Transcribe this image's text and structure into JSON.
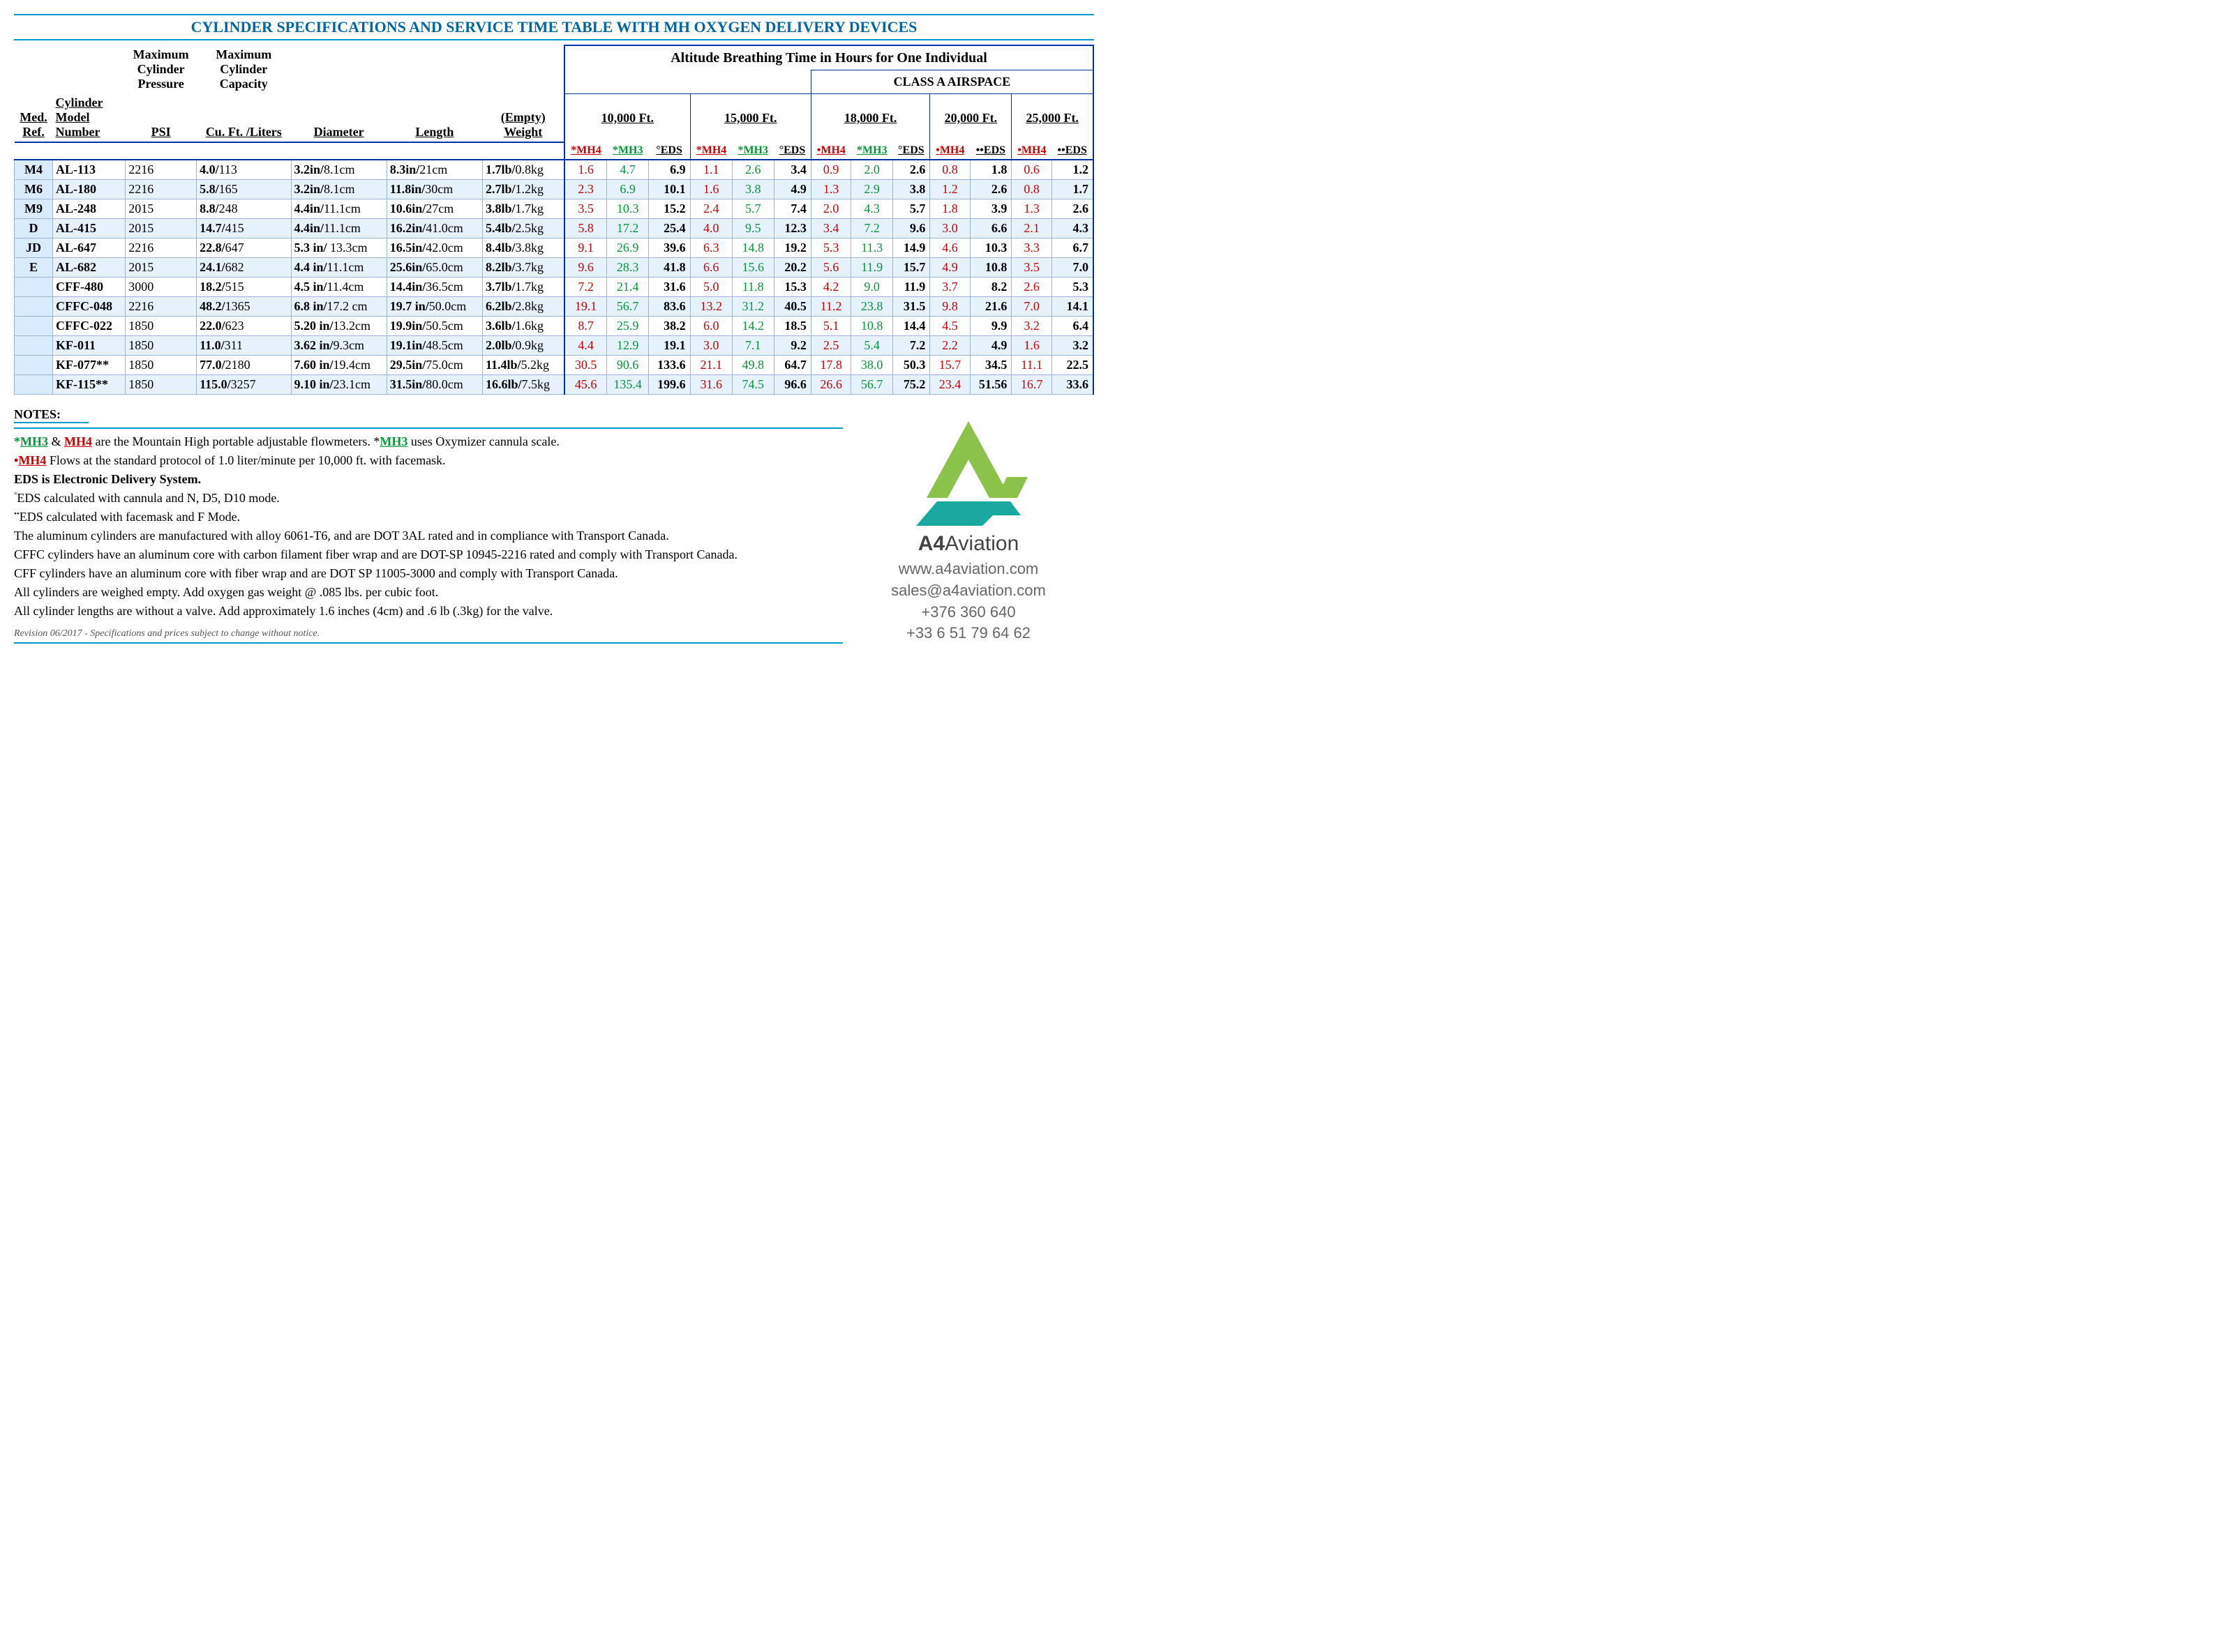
{
  "title": "CYLINDER SPECIFICATIONS AND SERVICE TIME TABLE WITH MH OXYGEN DELIVERY DEVICES",
  "altitude_header": "Altitude Breathing Time in Hours for One Individual",
  "class_a": "CLASS A AIRSPACE",
  "spec_headers": {
    "med_ref": "Med. Ref.",
    "model": "Cylinder Model Number",
    "psi": "Maximum Cylinder Pressure PSI",
    "capacity": "Maximum Cylinder Capacity Cu. Ft. /Liters",
    "diameter": "Diameter",
    "length": "Length",
    "weight": "(Empty) Weight"
  },
  "alt_headers": {
    "a10": "10,000 Ft.",
    "a15": "15,000 Ft.",
    "a18": "18,000 Ft.",
    "a20": "20,000 Ft.",
    "a25": "25,000 Ft."
  },
  "sub_labels": {
    "mh4_star": "*MH4",
    "mh3_star": "*MH3",
    "eds_deg": "°EDS",
    "mh4_dot": "•MH4",
    "eds_ddot": "••EDS"
  },
  "rows": [
    {
      "med": "M4",
      "model": "AL-113",
      "psi": "2216",
      "cap_b": "4.0/",
      "cap_n": "113",
      "dia_b": "3.2in/",
      "dia_n": "8.1cm",
      "len_b": "8.3in/",
      "len_n": "21cm",
      "wt_b": "1.7lb/",
      "wt_n": "0.8kg",
      "v": [
        "1.6",
        "4.7",
        "6.9",
        "1.1",
        "2.6",
        "3.4",
        "0.9",
        "2.0",
        "2.6",
        "0.8",
        "1.8",
        "0.6",
        "1.2"
      ]
    },
    {
      "med": "M6",
      "model": "AL-180",
      "psi": "2216",
      "cap_b": "5.8/",
      "cap_n": "165",
      "dia_b": "3.2in/",
      "dia_n": "8.1cm",
      "len_b": "11.8in/",
      "len_n": "30cm",
      "wt_b": "2.7lb/",
      "wt_n": "1.2kg",
      "v": [
        "2.3",
        "6.9",
        "10.1",
        "1.6",
        "3.8",
        "4.9",
        "1.3",
        "2.9",
        "3.8",
        "1.2",
        "2.6",
        "0.8",
        "1.7"
      ]
    },
    {
      "med": "M9",
      "model": "AL-248",
      "psi": "2015",
      "cap_b": "8.8/",
      "cap_n": "248",
      "dia_b": "4.4in/",
      "dia_n": "11.1cm",
      "len_b": "10.6in/",
      "len_n": "27cm",
      "wt_b": "3.8lb/",
      "wt_n": "1.7kg",
      "v": [
        "3.5",
        "10.3",
        "15.2",
        "2.4",
        "5.7",
        "7.4",
        "2.0",
        "4.3",
        "5.7",
        "1.8",
        "3.9",
        "1.3",
        "2.6"
      ]
    },
    {
      "med": "D",
      "model": "AL-415",
      "psi": "2015",
      "cap_b": "14.7/",
      "cap_n": "415",
      "dia_b": "4.4in/",
      "dia_n": "11.1cm",
      "len_b": "16.2in/",
      "len_n": "41.0cm",
      "wt_b": "5.4lb/",
      "wt_n": "2.5kg",
      "v": [
        "5.8",
        "17.2",
        "25.4",
        "4.0",
        "9.5",
        "12.3",
        "3.4",
        "7.2",
        "9.6",
        "3.0",
        "6.6",
        "2.1",
        "4.3"
      ]
    },
    {
      "med": "JD",
      "model": "AL-647",
      "psi": "2216",
      "cap_b": "22.8/",
      "cap_n": "647",
      "dia_b": "5.3 in/",
      "dia_n": " 13.3cm",
      "len_b": "16.5in/",
      "len_n": "42.0cm",
      "wt_b": "8.4lb/",
      "wt_n": "3.8kg",
      "v": [
        "9.1",
        "26.9",
        "39.6",
        "6.3",
        "14.8",
        "19.2",
        "5.3",
        "11.3",
        "14.9",
        "4.6",
        "10.3",
        "3.3",
        "6.7"
      ]
    },
    {
      "med": "E",
      "model": "AL-682",
      "psi": "2015",
      "cap_b": "24.1/",
      "cap_n": "682",
      "dia_b": "4.4 in/",
      "dia_n": "11.1cm",
      "len_b": "25.6in/",
      "len_n": "65.0cm",
      "wt_b": "8.2lb/",
      "wt_n": "3.7kg",
      "v": [
        "9.6",
        "28.3",
        "41.8",
        "6.6",
        "15.6",
        "20.2",
        "5.6",
        "11.9",
        "15.7",
        "4.9",
        "10.8",
        "3.5",
        "7.0"
      ]
    },
    {
      "med": "",
      "model": "CFF-480",
      "psi": "3000",
      "cap_b": "18.2/",
      "cap_n": "515",
      "dia_b": "4.5 in/",
      "dia_n": "11.4cm",
      "len_b": "14.4in/",
      "len_n": "36.5cm",
      "wt_b": "3.7lb/",
      "wt_n": "1.7kg",
      "v": [
        "7.2",
        "21.4",
        "31.6",
        "5.0",
        "11.8",
        "15.3",
        "4.2",
        "9.0",
        "11.9",
        "3.7",
        "8.2",
        "2.6",
        "5.3"
      ]
    },
    {
      "med": "",
      "model": "CFFC-048",
      "psi": "2216",
      "cap_b": "48.2/",
      "cap_n": "1365",
      "dia_b": "6.8 in/",
      "dia_n": "17.2 cm",
      "len_b": "19.7 in/",
      "len_n": "50.0cm",
      "wt_b": "6.2lb/",
      "wt_n": "2.8kg",
      "v": [
        "19.1",
        "56.7",
        "83.6",
        "13.2",
        "31.2",
        "40.5",
        "11.2",
        "23.8",
        "31.5",
        "9.8",
        "21.6",
        "7.0",
        "14.1"
      ]
    },
    {
      "med": "",
      "model": "CFFC-022",
      "psi": "1850",
      "cap_b": "22.0/",
      "cap_n": "623",
      "dia_b": "5.20 in/",
      "dia_n": "13.2cm",
      "len_b": "19.9in/",
      "len_n": "50.5cm",
      "wt_b": "3.6lb/",
      "wt_n": "1.6kg",
      "v": [
        "8.7",
        "25.9",
        "38.2",
        "6.0",
        "14.2",
        "18.5",
        "5.1",
        "10.8",
        "14.4",
        "4.5",
        "9.9",
        "3.2",
        "6.4"
      ]
    },
    {
      "med": "",
      "model": "KF-011",
      "psi": "1850",
      "cap_b": "11.0/",
      "cap_n": "311",
      "dia_b": "3.62 in/",
      "dia_n": "9.3cm",
      "len_b": "19.1in/",
      "len_n": "48.5cm",
      "wt_b": "2.0lb/",
      "wt_n": "0.9kg",
      "v": [
        "4.4",
        "12.9",
        "19.1",
        "3.0",
        "7.1",
        "9.2",
        "2.5",
        "5.4",
        "7.2",
        "2.2",
        "4.9",
        "1.6",
        "3.2"
      ]
    },
    {
      "med": "",
      "model": "KF-077**",
      "psi": "1850",
      "cap_b": "77.0/",
      "cap_n": "2180",
      "dia_b": "7.60 in/",
      "dia_n": "19.4cm",
      "len_b": "29.5in/",
      "len_n": "75.0cm",
      "wt_b": "11.4lb/",
      "wt_n": "5.2kg",
      "v": [
        "30.5",
        "90.6",
        "133.6",
        "21.1",
        "49.8",
        "64.7",
        "17.8",
        "38.0",
        "50.3",
        "15.7",
        "34.5",
        "11.1",
        "22.5"
      ]
    },
    {
      "med": "",
      "model": "KF-115**",
      "psi": "1850",
      "cap_b": "115.0/",
      "cap_n": "3257",
      "dia_b": "9.10 in/",
      "dia_n": "23.1cm",
      "len_b": "31.5in/",
      "len_n": "80.0cm",
      "wt_b": "16.6lb/",
      "wt_n": "7.5kg",
      "v": [
        "45.6",
        "135.4",
        "199.6",
        "31.6",
        "74.5",
        "96.6",
        "26.6",
        "56.7",
        "75.2",
        "23.4",
        "51.56",
        "16.7",
        "33.6"
      ]
    }
  ],
  "notes_title": "NOTES:",
  "notes": [
    {
      "prefix": "*",
      "html": "<span class='mh3-hdr' style='font-weight:bold'>MH3</span> & <span class='mh4-hdr' style='font-weight:bold'>MH4</span> are the Mountain High portable adjustable flowmeters. *<span class='mh3-hdr' style='font-weight:bold'>MH3</span> uses Oxymizer cannula scale."
    },
    {
      "prefix": "•",
      "html": "<span class='mh4-hdr' style='font-weight:bold'>MH4</span> Flows at the standard protocol of 1.0 liter/minute per 10,000 ft. with facemask."
    },
    {
      "prefix": "",
      "html": "<b>EDS is Electronic Delivery System.</b>"
    },
    {
      "prefix": "°",
      "html": "EDS calculated with cannula and N, D5, D10 mode."
    },
    {
      "prefix": "••",
      "html": "EDS calculated with facemask and F Mode."
    },
    {
      "prefix": "",
      "html": "The aluminum cylinders are manufactured with alloy 6061-T6, and are DOT 3AL rated and in compliance with Transport Canada."
    },
    {
      "prefix": "",
      "html": "CFFC cylinders have an aluminum core with carbon filament fiber wrap and are DOT-SP 10945-2216 rated and comply with Transport Canada."
    },
    {
      "prefix": "",
      "html": "CFF cylinders  have an aluminum core with fiber wrap and are DOT SP 11005-3000 and comply with Transport Canada."
    },
    {
      "prefix": "",
      "html": "All cylinders are weighed empty. Add oxygen gas weight @ .085 lbs. per cubic foot."
    },
    {
      "prefix": "",
      "html": "All cylinder lengths are without a valve. Add approximately 1.6 inches (4cm) and .6 lb (.3kg) for the valve."
    }
  ],
  "revision": "Revision 06/2017 - Specifications and prices subject to change without notice.",
  "company": {
    "a4": "A4",
    "aviation": "Aviation"
  },
  "contact": {
    "web": "www.a4aviation.com",
    "email": "sales@a4aviation.com",
    "phone1": "+376 360 640",
    "phone2": "+33 6 51 79 64 62"
  },
  "colors": {
    "mh4": "#cc0000",
    "mh3": "#009933",
    "border": "#0033aa",
    "rule": "#0099cc",
    "altbg": "#e6f3ff",
    "logo_green": "#8bc34a",
    "logo_teal": "#1aa9a0"
  }
}
